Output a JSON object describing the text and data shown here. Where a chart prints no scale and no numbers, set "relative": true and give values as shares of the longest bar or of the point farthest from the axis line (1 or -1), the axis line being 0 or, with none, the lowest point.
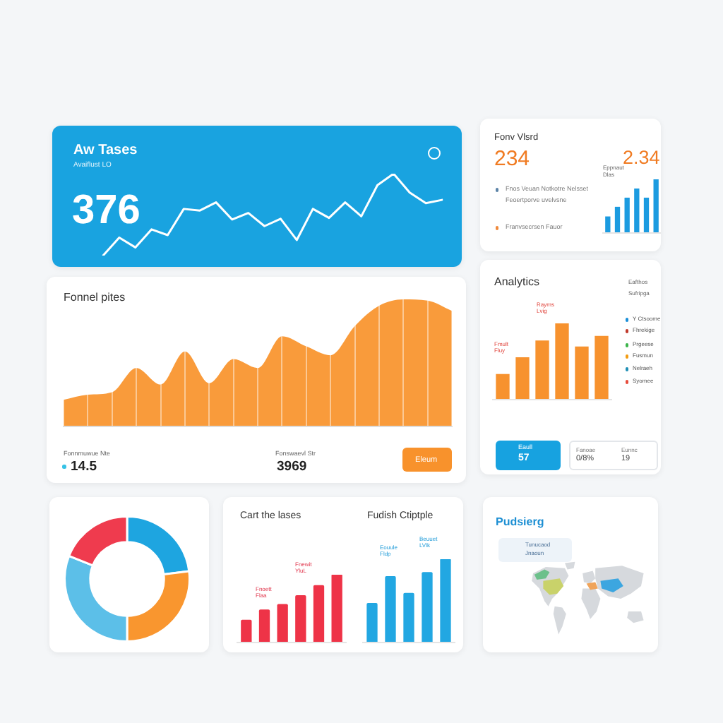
{
  "chart_data": [
    {
      "type": "other",
      "title": "Aw Tases",
      "subtitle": "Avaiflust LO",
      "annotations": [
        "376"
      ]
    },
    {
      "type": "line",
      "categories": [
        null,
        null,
        null,
        null,
        null,
        null,
        null,
        null,
        null,
        null,
        null,
        null,
        null,
        null,
        null,
        null,
        null,
        null,
        null,
        null,
        null,
        null
      ],
      "values": [
        0,
        0.22,
        0.1,
        0.32,
        0.25,
        0.57,
        0.55,
        0.65,
        0.44,
        0.52,
        0.36,
        0.45,
        0.19,
        0.57,
        0.46,
        0.65,
        0.48,
        0.86,
        1,
        0.77,
        0.64,
        0.68
      ],
      "color": "#ffffff",
      "relative": true
    },
    {
      "type": "other",
      "title": "Fonv Vlsrd",
      "annotations": [
        "234",
        "2.34",
        "Fnos Veuan Notkotre Nelsset",
        "Feoertporve uvelvsne",
        "Franvsecrsen Fauor"
      ]
    },
    {
      "type": "bar",
      "title": "Eppnaut\nDlas",
      "categories": [
        null,
        null,
        null,
        null,
        null,
        null
      ],
      "values": [
        0.3,
        0.48,
        0.65,
        0.82,
        0.65,
        1
      ],
      "color": "#1b9be0",
      "relative": true
    },
    {
      "type": "area",
      "title": "Fonnel pites",
      "annotations": [
        "Fonnmuwue Nte",
        "14.5",
        "Fonswaevl Str",
        "3969",
        "Eleum"
      ],
      "categories": [
        null,
        null,
        null,
        null,
        null,
        null,
        null,
        null,
        null,
        null,
        null,
        null,
        null,
        null,
        null,
        null,
        null
      ],
      "values": [
        0.21,
        0.25,
        0.27,
        0.46,
        0.33,
        0.59,
        0.34,
        0.53,
        0.46,
        0.71,
        0.63,
        0.56,
        0.79,
        0.95,
        1,
        0.99,
        0.91
      ],
      "color": "#f99b3b",
      "relative": true,
      "grid": "x"
    },
    {
      "type": "bar",
      "title": "Analytics",
      "annotations": [
        "Rayms\nLvig",
        "Fmult\nFluy"
      ],
      "categories": [
        null,
        null,
        null,
        null,
        null,
        null
      ],
      "values": [
        0.33,
        0.55,
        0.77,
        1,
        0.69,
        0.83
      ],
      "color": "#f7922e",
      "relative": true
    },
    {
      "type": "other",
      "annotations": [
        "Eafthos",
        "Sufripga",
        "Y Ctsoome",
        "Fhrekige",
        "Prgeese",
        "Fusmun",
        "Nelraeh",
        "Syomee",
        "Eaull",
        "57",
        "Fanoae",
        "0/8%",
        "Eunnc",
        "19"
      ]
    },
    {
      "type": "donut",
      "categories": [
        null,
        null,
        null,
        null
      ],
      "values": [
        23,
        27,
        31,
        19
      ],
      "colors": [
        "#1ea5e0",
        "#f9962f",
        "#5cbfe8",
        "#ef3b4e"
      ]
    },
    {
      "type": "bar",
      "title": "Cart the lases",
      "annotations": [
        "Fnoett\nFlaa",
        "Fnewit\nYluL"
      ],
      "categories": [
        null,
        null,
        null,
        null,
        null,
        null
      ],
      "values": [
        0.33,
        0.48,
        0.56,
        0.69,
        0.84,
        1
      ],
      "color": "#ee3347",
      "relative": true
    },
    {
      "type": "bar",
      "title": "Fudish Ctiptple",
      "annotations": [
        "Eouule\nFldp",
        "Beuuet\nLVlk"
      ],
      "categories": [
        null,
        null,
        null,
        null,
        null
      ],
      "values": [
        0.47,
        0.79,
        0.59,
        0.84,
        1
      ],
      "color": "#22a7e2",
      "relative": true
    },
    {
      "type": "other",
      "title": "Pudsierg",
      "annotations": [
        "Tunucaod",
        "Jnaoun"
      ]
    }
  ]
}
